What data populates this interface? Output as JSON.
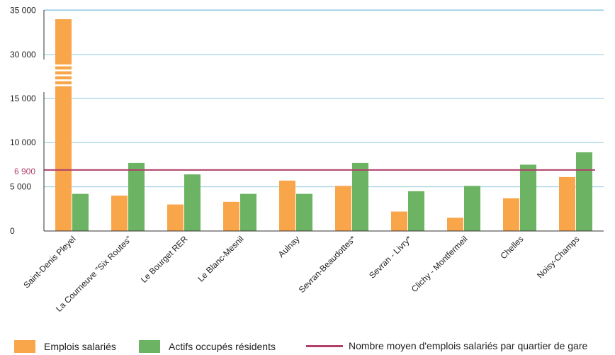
{
  "chart_data": {
    "type": "bar",
    "categories": [
      "Saint-Denis Pleyel",
      "La Courneuve \"Six Routes\"",
      "Le Bourget RER",
      "Le Blanc-Mesnil",
      "Aulnay",
      "Sevran-Beaudottes*",
      "Sevran - Livry*",
      "Clichy - Montfermeil",
      "Chelles",
      "Noisy-Champs"
    ],
    "series": [
      {
        "name": "Emplois salariés",
        "color": "#f9a64a",
        "values": [
          34000,
          4000,
          3000,
          3300,
          5700,
          5100,
          2200,
          1500,
          3700,
          6100
        ]
      },
      {
        "name": "Actifs occupés résidents",
        "color": "#6cb363",
        "values": [
          4200,
          7700,
          6400,
          4200,
          4200,
          7700,
          4500,
          5100,
          7500,
          8900
        ]
      }
    ],
    "reference_line": {
      "name": "Nombre moyen d'emplois salariés par quartier de gare",
      "value": 6900,
      "label": "6 900",
      "color": "#b0406a"
    },
    "yticks": [
      {
        "label": "0",
        "value": 0
      },
      {
        "label": "5 000",
        "value": 5000
      },
      {
        "label": "10 000",
        "value": 10000
      },
      {
        "label": "15 000",
        "value": 15000
      },
      {
        "label": "30 000",
        "value": 30000
      },
      {
        "label": "35 000",
        "value": 35000
      }
    ],
    "axis_break": [
      15000,
      30000
    ],
    "grid": true,
    "legend_position": "bottom"
  }
}
